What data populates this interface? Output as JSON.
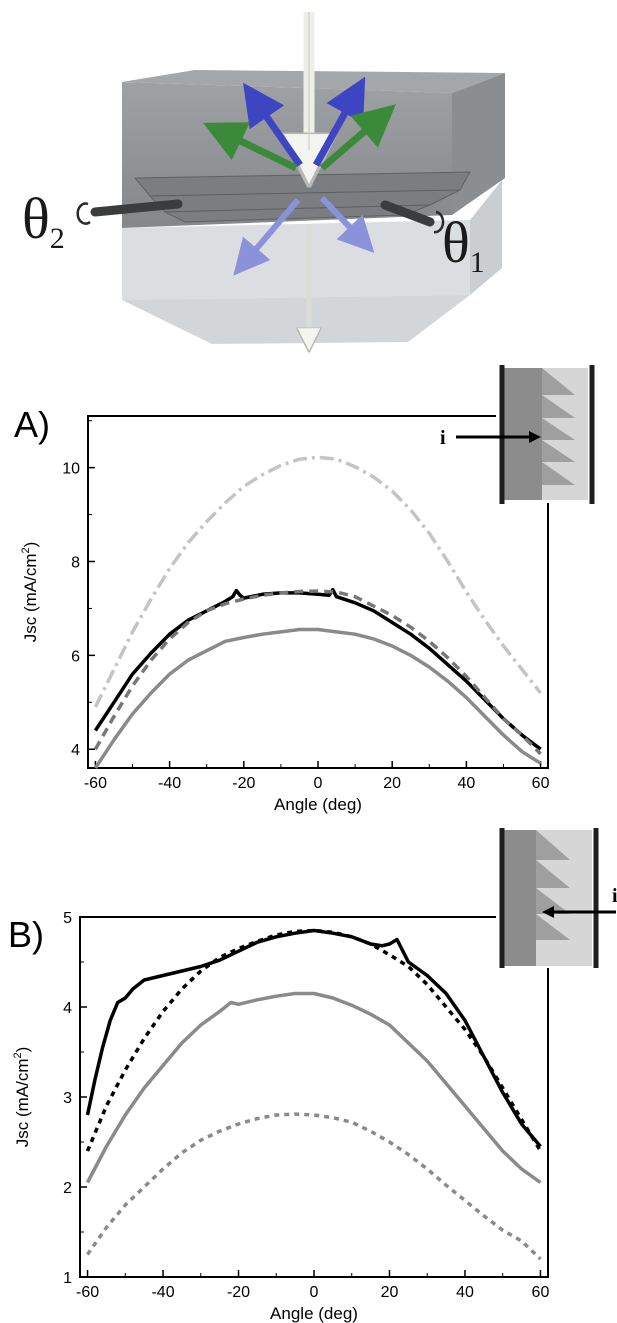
{
  "illustration": {
    "theta_left": "θ",
    "theta_left_sub": "2",
    "theta_right": "θ",
    "theta_right_sub": "1",
    "colors": {
      "box_top": "#8e9193",
      "box_bottom": "#d5d9db",
      "arrow_blue": "#3e45c2",
      "arrow_green": "#3a8a3a"
    }
  },
  "chart_data": [
    {
      "type": "line",
      "panel_label": "A)",
      "xlabel": "Angle (deg)",
      "ylabel_main": "Jsc (mA/cm",
      "ylabel_sup": "2",
      "ylabel_tail": ")",
      "xlim": [
        -62,
        62
      ],
      "ylim": [
        3.6,
        11.1
      ],
      "xticks": [
        -60,
        -40,
        -20,
        0,
        20,
        40,
        60
      ],
      "yticks": [
        4,
        6,
        8,
        10
      ],
      "grid": false,
      "inset_label": "i",
      "inset_arrow_direction": "right",
      "series": [
        {
          "style": "dashdot",
          "color": "#c4c4c4",
          "x": [
            -60,
            -55,
            -50,
            -45,
            -40,
            -35,
            -30,
            -25,
            -20,
            -15,
            -10,
            -5,
            0,
            5,
            10,
            15,
            20,
            25,
            30,
            35,
            40,
            45,
            50,
            55,
            60
          ],
          "y": [
            4.9,
            5.7,
            6.5,
            7.2,
            7.85,
            8.4,
            8.85,
            9.25,
            9.6,
            9.85,
            10.05,
            10.18,
            10.22,
            10.18,
            10.02,
            9.8,
            9.5,
            9.1,
            8.6,
            8.0,
            7.35,
            6.75,
            6.2,
            5.7,
            5.2
          ]
        },
        {
          "style": "solid",
          "color": "#000000",
          "x": [
            -60,
            -55,
            -50,
            -45,
            -40,
            -35,
            -30,
            -25,
            -23,
            -22,
            -21,
            -20,
            -15,
            -10,
            -5,
            0,
            3,
            4,
            5,
            10,
            15,
            20,
            25,
            30,
            35,
            40,
            45,
            50,
            55,
            60
          ],
          "y": [
            4.4,
            5.0,
            5.6,
            6.05,
            6.45,
            6.75,
            6.95,
            7.15,
            7.25,
            7.38,
            7.28,
            7.22,
            7.3,
            7.33,
            7.33,
            7.3,
            7.28,
            7.4,
            7.25,
            7.12,
            6.95,
            6.7,
            6.45,
            6.15,
            5.8,
            5.45,
            5.05,
            4.65,
            4.3,
            4.0
          ]
        },
        {
          "style": "dash",
          "color": "#777777",
          "x": [
            -60,
            -55,
            -50,
            -45,
            -40,
            -35,
            -30,
            -25,
            -20,
            -15,
            -10,
            -5,
            0,
            5,
            10,
            15,
            20,
            25,
            30,
            35,
            40,
            45,
            50,
            55,
            60
          ],
          "y": [
            4.0,
            4.7,
            5.35,
            5.9,
            6.35,
            6.7,
            6.95,
            7.1,
            7.2,
            7.28,
            7.33,
            7.36,
            7.37,
            7.35,
            7.25,
            7.05,
            6.85,
            6.6,
            6.3,
            5.95,
            5.55,
            5.1,
            4.65,
            4.3,
            3.9
          ]
        },
        {
          "style": "solid",
          "color": "#8a8a8a",
          "x": [
            -60,
            -55,
            -50,
            -45,
            -40,
            -35,
            -30,
            -25,
            -20,
            -15,
            -10,
            -5,
            0,
            5,
            10,
            15,
            20,
            25,
            30,
            35,
            40,
            45,
            50,
            55,
            60
          ],
          "y": [
            3.6,
            4.2,
            4.75,
            5.2,
            5.6,
            5.9,
            6.1,
            6.3,
            6.38,
            6.45,
            6.5,
            6.55,
            6.55,
            6.5,
            6.45,
            6.35,
            6.2,
            6.0,
            5.75,
            5.45,
            5.1,
            4.7,
            4.3,
            3.95,
            3.7
          ]
        }
      ]
    },
    {
      "type": "line",
      "panel_label": "B)",
      "xlabel": "Angle (deg)",
      "ylabel_main": "Jsc (mA/cm",
      "ylabel_sup": "2",
      "ylabel_tail": ")",
      "xlim": [
        -62,
        62
      ],
      "ylim": [
        1,
        5
      ],
      "xticks": [
        -60,
        -40,
        -20,
        0,
        20,
        40,
        60
      ],
      "yticks": [
        1,
        2,
        3,
        4,
        5
      ],
      "grid": false,
      "inset_label": "i",
      "inset_arrow_direction": "left",
      "series": [
        {
          "style": "solid",
          "color": "#000000",
          "x": [
            -60,
            -58,
            -56,
            -54,
            -52,
            -50,
            -48,
            -45,
            -40,
            -35,
            -30,
            -25,
            -20,
            -15,
            -10,
            -5,
            0,
            5,
            10,
            15,
            18,
            20,
            22,
            25,
            30,
            35,
            40,
            45,
            50,
            55,
            60
          ],
          "y": [
            2.8,
            3.2,
            3.55,
            3.85,
            4.05,
            4.1,
            4.2,
            4.3,
            4.35,
            4.4,
            4.45,
            4.52,
            4.62,
            4.72,
            4.78,
            4.82,
            4.85,
            4.82,
            4.78,
            4.7,
            4.68,
            4.7,
            4.75,
            4.5,
            4.35,
            4.15,
            3.85,
            3.45,
            3.05,
            2.7,
            2.45
          ]
        },
        {
          "style": "dot",
          "color": "#000000",
          "x": [
            -60,
            -55,
            -50,
            -45,
            -40,
            -35,
            -30,
            -25,
            -20,
            -15,
            -10,
            -5,
            0,
            5,
            10,
            15,
            20,
            25,
            30,
            35,
            40,
            45,
            50,
            55,
            60
          ],
          "y": [
            2.4,
            2.9,
            3.3,
            3.65,
            3.95,
            4.2,
            4.4,
            4.55,
            4.65,
            4.73,
            4.8,
            4.84,
            4.85,
            4.83,
            4.78,
            4.7,
            4.58,
            4.45,
            4.25,
            4.0,
            3.75,
            3.45,
            3.1,
            2.75,
            2.4
          ]
        },
        {
          "style": "solid",
          "color": "#8a8a8a",
          "x": [
            -60,
            -55,
            -50,
            -45,
            -40,
            -35,
            -30,
            -25,
            -22,
            -20,
            -15,
            -10,
            -5,
            0,
            5,
            10,
            15,
            20,
            25,
            30,
            35,
            40,
            45,
            50,
            55,
            60
          ],
          "y": [
            2.05,
            2.45,
            2.8,
            3.1,
            3.35,
            3.6,
            3.8,
            3.95,
            4.05,
            4.03,
            4.08,
            4.12,
            4.15,
            4.15,
            4.1,
            4.02,
            3.92,
            3.8,
            3.6,
            3.4,
            3.15,
            2.9,
            2.65,
            2.4,
            2.2,
            2.05
          ]
        },
        {
          "style": "dot",
          "color": "#8a8a8a",
          "x": [
            -60,
            -55,
            -50,
            -45,
            -40,
            -35,
            -30,
            -25,
            -20,
            -15,
            -10,
            -5,
            0,
            5,
            10,
            15,
            20,
            25,
            30,
            35,
            40,
            45,
            50,
            55,
            60
          ],
          "y": [
            1.25,
            1.55,
            1.8,
            2.0,
            2.2,
            2.38,
            2.52,
            2.62,
            2.7,
            2.76,
            2.8,
            2.81,
            2.8,
            2.77,
            2.72,
            2.62,
            2.5,
            2.36,
            2.2,
            2.02,
            1.85,
            1.68,
            1.52,
            1.4,
            1.2
          ]
        }
      ]
    }
  ]
}
